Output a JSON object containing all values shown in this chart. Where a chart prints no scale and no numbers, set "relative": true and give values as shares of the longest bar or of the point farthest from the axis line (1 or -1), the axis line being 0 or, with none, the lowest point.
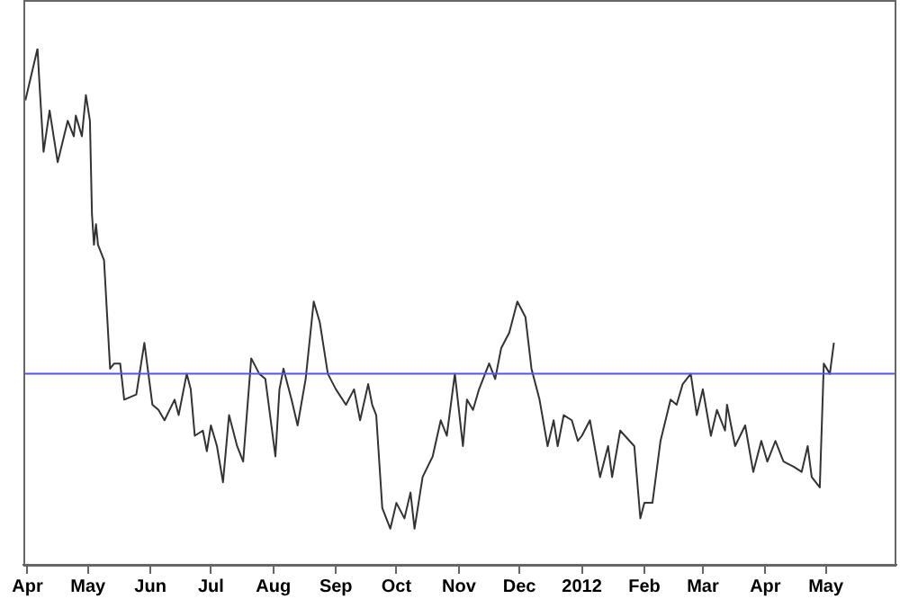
{
  "chart_data": {
    "type": "line",
    "relative": true,
    "grid": false,
    "legend": false,
    "marker": "none",
    "line_style": "solid",
    "xlim": [
      "2011-03-30",
      "2012-06-05"
    ],
    "xticks": [
      {
        "value": "2011-04-01",
        "label": "Apr"
      },
      {
        "value": "2011-05-01",
        "label": "May"
      },
      {
        "value": "2011-06-01",
        "label": "Jun"
      },
      {
        "value": "2011-07-01",
        "label": "Jul"
      },
      {
        "value": "2011-08-01",
        "label": "Aug"
      },
      {
        "value": "2011-09-01",
        "label": "Sep"
      },
      {
        "value": "2011-10-01",
        "label": "Oct"
      },
      {
        "value": "2011-11-01",
        "label": "Nov"
      },
      {
        "value": "2011-12-01",
        "label": "Dec"
      },
      {
        "value": "2012-01-01",
        "label": "2012"
      },
      {
        "value": "2012-02-01",
        "label": "Feb"
      },
      {
        "value": "2012-03-01",
        "label": "Mar"
      },
      {
        "value": "2012-04-01",
        "label": "Apr"
      },
      {
        "value": "2012-05-01",
        "label": "May"
      }
    ],
    "ref_lines": [
      {
        "axis": "y",
        "value": 0.37,
        "color": "#5555ee"
      }
    ],
    "series": [
      {
        "color": "#333333",
        "x": [
          "2011-03-31",
          "2011-04-06",
          "2011-04-07",
          "2011-04-09",
          "2011-04-12",
          "2011-04-16",
          "2011-04-21",
          "2011-04-24",
          "2011-04-25",
          "2011-04-28",
          "2011-04-30",
          "2011-05-02",
          "2011-05-03",
          "2011-05-04",
          "2011-05-05",
          "2011-05-06",
          "2011-05-09",
          "2011-05-12",
          "2011-05-14",
          "2011-05-17",
          "2011-05-19",
          "2011-05-25",
          "2011-05-29",
          "2011-05-31",
          "2011-06-02",
          "2011-06-05",
          "2011-06-08",
          "2011-06-13",
          "2011-06-15",
          "2011-06-19",
          "2011-06-21",
          "2011-06-23",
          "2011-06-27",
          "2011-06-29",
          "2011-07-01",
          "2011-07-04",
          "2011-07-07",
          "2011-07-10",
          "2011-07-14",
          "2011-07-17",
          "2011-07-21",
          "2011-07-25",
          "2011-07-28",
          "2011-08-02",
          "2011-08-04",
          "2011-08-06",
          "2011-08-10",
          "2011-08-13",
          "2011-08-17",
          "2011-08-21",
          "2011-08-24",
          "2011-08-28",
          "2011-09-01",
          "2011-09-06",
          "2011-09-10",
          "2011-09-13",
          "2011-09-17",
          "2011-09-19",
          "2011-09-21",
          "2011-09-24",
          "2011-09-28",
          "2011-10-01",
          "2011-10-05",
          "2011-10-08",
          "2011-10-10",
          "2011-10-14",
          "2011-10-19",
          "2011-10-23",
          "2011-10-26",
          "2011-10-30",
          "2011-11-03",
          "2011-11-05",
          "2011-11-08",
          "2011-11-11",
          "2011-11-16",
          "2011-11-19",
          "2011-11-22",
          "2011-11-26",
          "2011-11-30",
          "2011-12-04",
          "2011-12-07",
          "2011-12-11",
          "2011-12-15",
          "2011-12-18",
          "2011-12-20",
          "2011-12-23",
          "2011-12-27",
          "2011-12-30",
          "2012-01-01",
          "2012-01-05",
          "2012-01-10",
          "2012-01-14",
          "2012-01-16",
          "2012-01-20",
          "2012-01-27",
          "2012-01-30",
          "2012-02-01",
          "2012-02-05",
          "2012-02-09",
          "2012-02-14",
          "2012-02-17",
          "2012-02-20",
          "2012-02-24",
          "2012-02-27",
          "2012-03-01",
          "2012-03-05",
          "2012-03-08",
          "2012-03-12",
          "2012-03-13",
          "2012-03-17",
          "2012-03-22",
          "2012-03-26",
          "2012-03-30",
          "2012-04-02",
          "2012-04-06",
          "2012-04-10",
          "2012-04-15",
          "2012-04-19",
          "2012-04-22",
          "2012-04-24",
          "2012-04-28",
          "2012-04-30",
          "2012-05-03",
          "2012-05-05"
        ],
        "values": [
          0.9,
          1,
          0.93,
          0.8,
          0.88,
          0.78,
          0.86,
          0.83,
          0.87,
          0.83,
          0.91,
          0.86,
          0.68,
          0.62,
          0.66,
          0.62,
          0.59,
          0.38,
          0.39,
          0.39,
          0.32,
          0.33,
          0.43,
          0.37,
          0.31,
          0.3,
          0.28,
          0.32,
          0.29,
          0.37,
          0.34,
          0.25,
          0.26,
          0.22,
          0.27,
          0.23,
          0.16,
          0.29,
          0.23,
          0.2,
          0.4,
          0.37,
          0.36,
          0.21,
          0.34,
          0.38,
          0.32,
          0.27,
          0.36,
          0.51,
          0.47,
          0.37,
          0.34,
          0.31,
          0.34,
          0.28,
          0.35,
          0.31,
          0.29,
          0.11,
          0.07,
          0.12,
          0.09,
          0.14,
          0.07,
          0.17,
          0.21,
          0.28,
          0.25,
          0.37,
          0.23,
          0.32,
          0.3,
          0.34,
          0.39,
          0.36,
          0.42,
          0.45,
          0.51,
          0.48,
          0.38,
          0.32,
          0.23,
          0.28,
          0.23,
          0.29,
          0.28,
          0.24,
          0.25,
          0.28,
          0.17,
          0.23,
          0.17,
          0.26,
          0.23,
          0.09,
          0.12,
          0.12,
          0.24,
          0.32,
          0.31,
          0.35,
          0.37,
          0.29,
          0.34,
          0.25,
          0.3,
          0.26,
          0.31,
          0.23,
          0.27,
          0.18,
          0.24,
          0.2,
          0.24,
          0.2,
          0.19,
          0.18,
          0.23,
          0.17,
          0.15,
          0.39,
          0.37,
          0.43
        ]
      }
    ]
  }
}
